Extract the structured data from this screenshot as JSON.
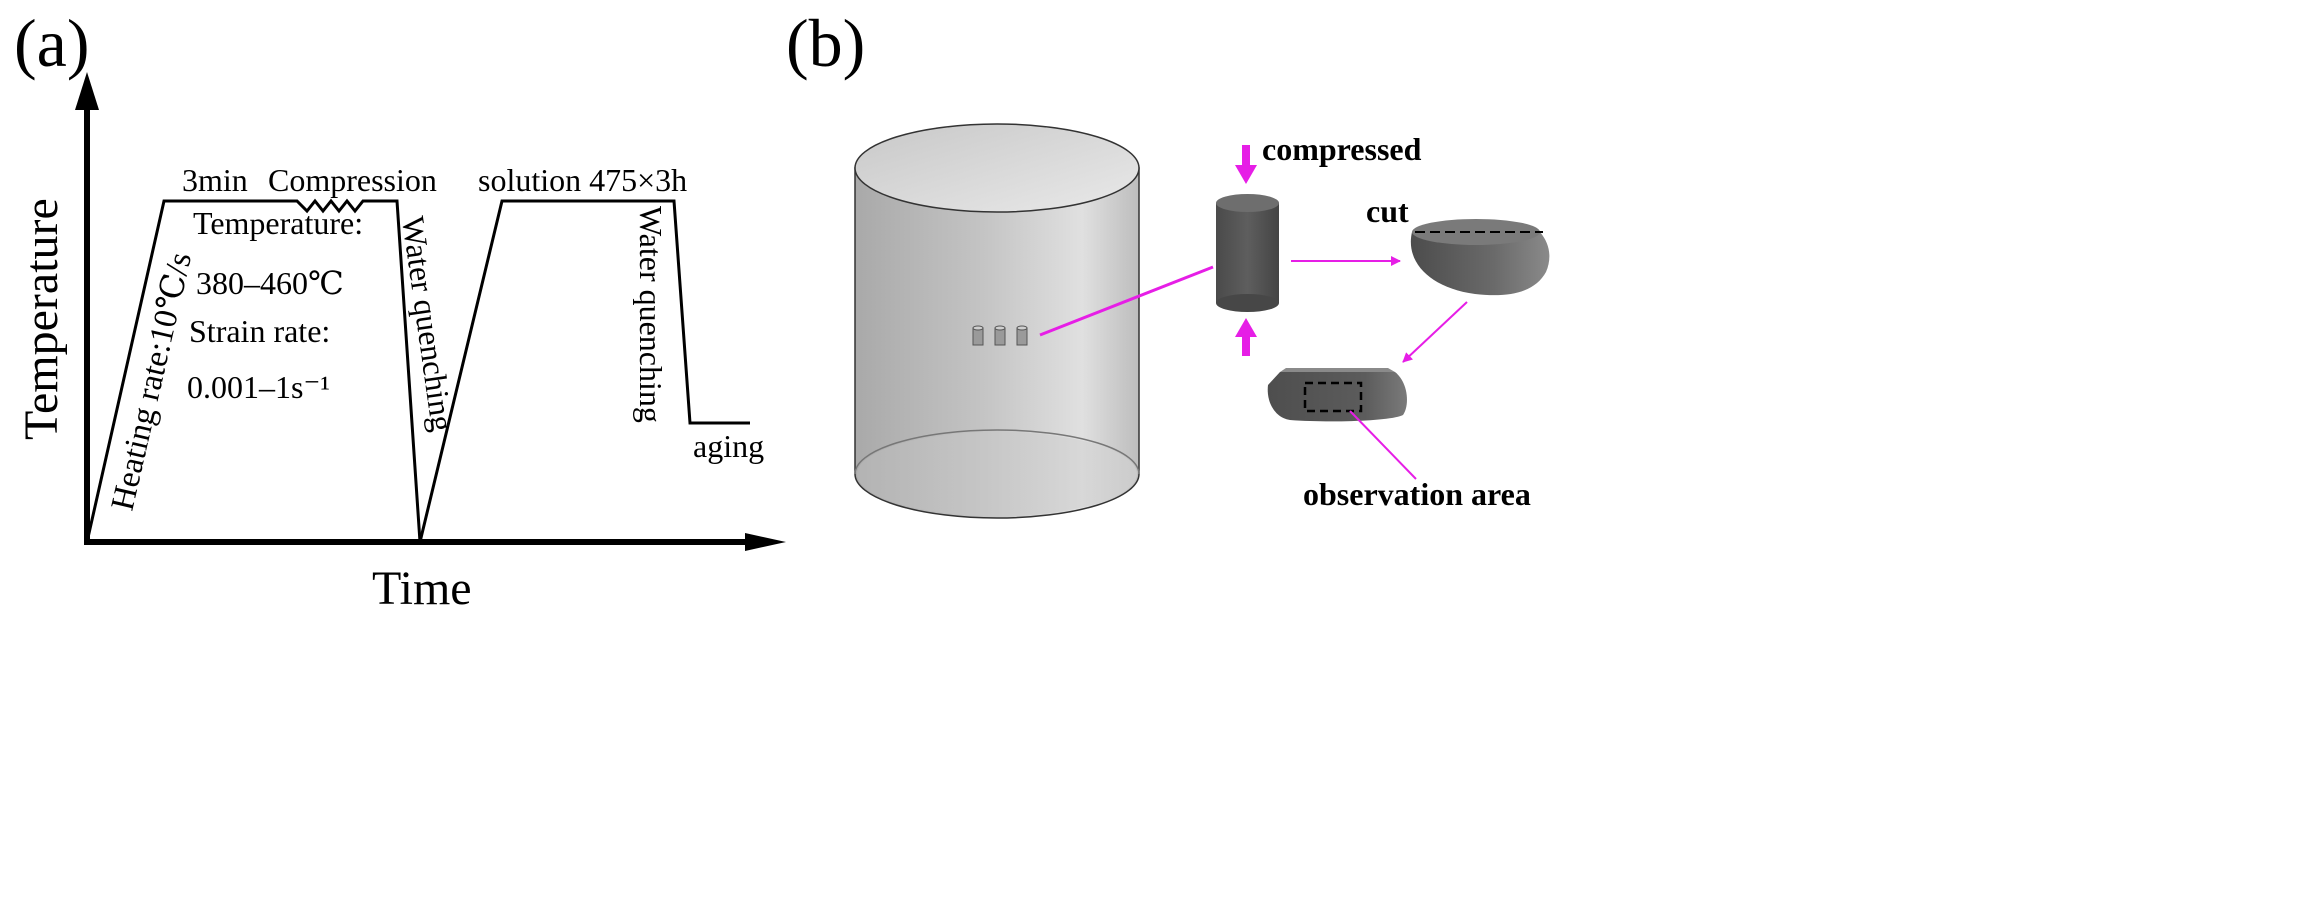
{
  "panel_a": {
    "label": "(a)",
    "y_axis_label": "Temperature",
    "x_axis_label": "Time",
    "heating_label": "Heating rate:10℃/s",
    "hold_label": "3min",
    "compression_label": "Compression",
    "temperature_label": "Temperature:",
    "temperature_range": "380–460℃",
    "strain_rate_label": "Strain rate:",
    "strain_rate_range": "0.001–1s⁻¹",
    "water_quenching_1": "Water quenching",
    "solution_label": "solution 475×3h",
    "water_quenching_2": "Water quenching",
    "aging_label": "aging"
  },
  "panel_b": {
    "label": "(b)",
    "compressed_label": "compressed",
    "cut_label": "cut",
    "observation_label": "observation area",
    "accent_color": "#e61ee6"
  }
}
